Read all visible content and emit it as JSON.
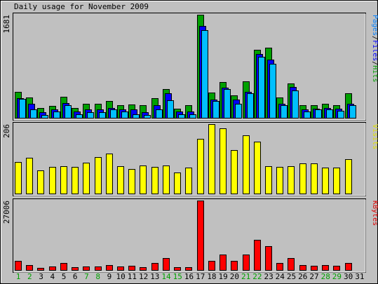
{
  "chart_data": {
    "type": "bar",
    "title": "Daily usage for November 2009",
    "categories": [
      "1",
      "2",
      "3",
      "4",
      "5",
      "6",
      "7",
      "8",
      "9",
      "10",
      "11",
      "12",
      "13",
      "14",
      "15",
      "16",
      "17",
      "18",
      "19",
      "20",
      "21",
      "22",
      "23",
      "24",
      "25",
      "26",
      "27",
      "28",
      "29",
      "30",
      "31"
    ],
    "weekend_days": [
      1,
      2,
      7,
      8,
      14,
      15,
      21,
      22,
      28,
      29
    ],
    "panels": [
      {
        "name": "hits-files-pages",
        "max_label": "1681",
        "ymax": 1681,
        "legend": [
          {
            "text": "Pages",
            "color": "#0080ff"
          },
          {
            "text": "/",
            "color": "#000000"
          },
          {
            "text": "Files",
            "color": "#0000ff"
          },
          {
            "text": "/",
            "color": "#000000"
          },
          {
            "text": "Hits",
            "color": "#00a000"
          }
        ],
        "series": [
          {
            "name": "Hits",
            "color": "#00a000",
            "values": [
              422,
              326,
              158,
              194,
              346,
              161,
              226,
              226,
              269,
              211,
              221,
              201,
              322,
              473,
              149,
              211,
              1681,
              408,
              583,
              367,
              596,
              1106,
              1139,
              326,
              557,
              211,
              211,
              226,
              211,
              396,
              0
            ]
          },
          {
            "name": "Files",
            "color": "#0000ff",
            "values": [
              322,
              226,
              88,
              134,
              236,
              105,
              134,
              134,
              158,
              134,
              134,
              88,
              209,
              400,
              105,
              105,
              1494,
              295,
              493,
              295,
              422,
              1046,
              952,
              226,
              507,
              134,
              149,
              158,
              149,
              226,
              0
            ]
          },
          {
            "name": "Pages",
            "color": "#00bfff",
            "values": [
              309,
              134,
              44,
              105,
              201,
              62,
              88,
              88,
              134,
              105,
              62,
              44,
              134,
              283,
              62,
              62,
              1435,
              278,
              473,
              226,
              400,
              997,
              880,
              211,
              443,
              105,
              134,
              134,
              119,
              201,
              0
            ]
          }
        ]
      },
      {
        "name": "visits",
        "max_label": "206",
        "ymax": 206,
        "legend": [
          {
            "text": "Visits",
            "color": "#e0e000"
          }
        ],
        "series": [
          {
            "name": "Visits",
            "color": "#ffff00",
            "values": [
              93,
              107,
              68,
              79,
              82,
              79,
              91,
              108,
              119,
              81,
              72,
              84,
              79,
              84,
              63,
              77,
              162,
              206,
              194,
              128,
              172,
              154,
              81,
              79,
              82,
              89,
              90,
              78,
              76,
              101,
              0
            ]
          }
        ]
      },
      {
        "name": "kbytes",
        "max_label": "27006",
        "ymax": 27006,
        "legend": [
          {
            "text": "KBytes",
            "color": "#e00000"
          }
        ],
        "series": [
          {
            "name": "KBytes",
            "color": "#ff0000",
            "values": [
              3419,
              1875,
              830,
              1500,
              2679,
              1016,
              1323,
              1323,
              2024,
              1266,
              1578,
              1136,
              2735,
              4581,
              1094,
              1016,
              27006,
              3500,
              6072,
              3600,
              5882,
              11700,
              9186,
              2659,
              4760,
              1800,
              1719,
              1875,
              1719,
              2735,
              0
            ]
          }
        ]
      }
    ]
  }
}
